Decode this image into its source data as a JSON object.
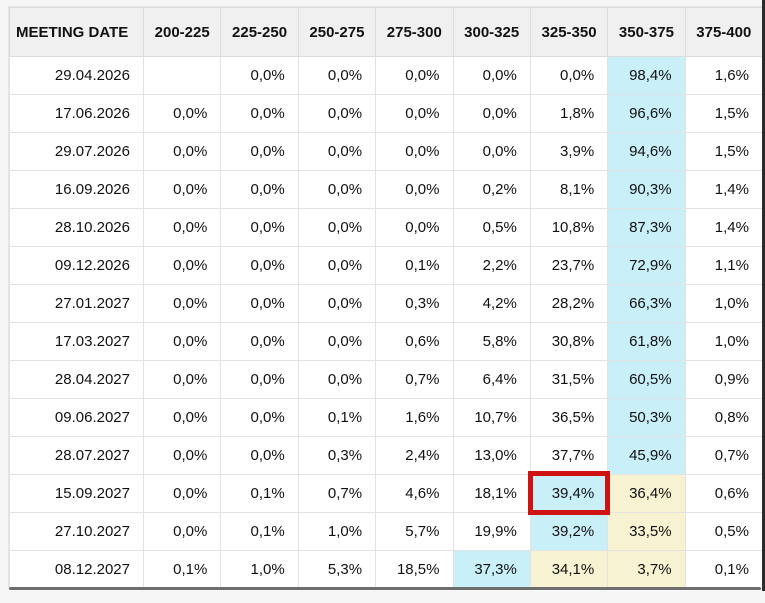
{
  "colors": {
    "highlight_cyan": "#c9eff8",
    "highlight_yellow": "#f6f2d2",
    "red_box_border": "#cf1212",
    "header_bg": "#f0f0f0",
    "grid_line": "#dcdcdc",
    "page_bg": "#f6f6f6"
  },
  "table": {
    "header": {
      "date_label": "MEETING DATE",
      "range_labels": [
        "200-225",
        "225-250",
        "250-275",
        "275-300",
        "300-325",
        "325-350",
        "350-375",
        "375-400"
      ]
    },
    "rows": [
      {
        "date": "29.04.2026",
        "values": [
          "",
          "0,0%",
          "0,0%",
          "0,0%",
          "0,0%",
          "0,0%",
          "98,4%",
          "1,6%"
        ],
        "cyan": 6,
        "yellow": [],
        "red_box": null
      },
      {
        "date": "17.06.2026",
        "values": [
          "0,0%",
          "0,0%",
          "0,0%",
          "0,0%",
          "0,0%",
          "1,8%",
          "96,6%",
          "1,5%"
        ],
        "cyan": 6,
        "yellow": [],
        "red_box": null
      },
      {
        "date": "29.07.2026",
        "values": [
          "0,0%",
          "0,0%",
          "0,0%",
          "0,0%",
          "0,0%",
          "3,9%",
          "94,6%",
          "1,5%"
        ],
        "cyan": 6,
        "yellow": [],
        "red_box": null
      },
      {
        "date": "16.09.2026",
        "values": [
          "0,0%",
          "0,0%",
          "0,0%",
          "0,0%",
          "0,2%",
          "8,1%",
          "90,3%",
          "1,4%"
        ],
        "cyan": 6,
        "yellow": [],
        "red_box": null
      },
      {
        "date": "28.10.2026",
        "values": [
          "0,0%",
          "0,0%",
          "0,0%",
          "0,0%",
          "0,5%",
          "10,8%",
          "87,3%",
          "1,4%"
        ],
        "cyan": 6,
        "yellow": [],
        "red_box": null
      },
      {
        "date": "09.12.2026",
        "values": [
          "0,0%",
          "0,0%",
          "0,0%",
          "0,1%",
          "2,2%",
          "23,7%",
          "72,9%",
          "1,1%"
        ],
        "cyan": 6,
        "yellow": [],
        "red_box": null
      },
      {
        "date": "27.01.2027",
        "values": [
          "0,0%",
          "0,0%",
          "0,0%",
          "0,3%",
          "4,2%",
          "28,2%",
          "66,3%",
          "1,0%"
        ],
        "cyan": 6,
        "yellow": [],
        "red_box": null
      },
      {
        "date": "17.03.2027",
        "values": [
          "0,0%",
          "0,0%",
          "0,0%",
          "0,6%",
          "5,8%",
          "30,8%",
          "61,8%",
          "1,0%"
        ],
        "cyan": 6,
        "yellow": [],
        "red_box": null
      },
      {
        "date": "28.04.2027",
        "values": [
          "0,0%",
          "0,0%",
          "0,0%",
          "0,7%",
          "6,4%",
          "31,5%",
          "60,5%",
          "0,9%"
        ],
        "cyan": 6,
        "yellow": [],
        "red_box": null
      },
      {
        "date": "09.06.2027",
        "values": [
          "0,0%",
          "0,0%",
          "0,1%",
          "1,6%",
          "10,7%",
          "36,5%",
          "50,3%",
          "0,8%"
        ],
        "cyan": 6,
        "yellow": [],
        "red_box": null
      },
      {
        "date": "28.07.2027",
        "values": [
          "0,0%",
          "0,0%",
          "0,3%",
          "2,4%",
          "13,0%",
          "37,7%",
          "45,9%",
          "0,7%"
        ],
        "cyan": 6,
        "yellow": [],
        "red_box": null
      },
      {
        "date": "15.09.2027",
        "values": [
          "0,0%",
          "0,1%",
          "0,7%",
          "4,6%",
          "18,1%",
          "39,4%",
          "36,4%",
          "0,6%"
        ],
        "cyan": 5,
        "yellow": [
          6
        ],
        "red_box": 5
      },
      {
        "date": "27.10.2027",
        "values": [
          "0,0%",
          "0,1%",
          "1,0%",
          "5,7%",
          "19,9%",
          "39,2%",
          "33,5%",
          "0,5%"
        ],
        "cyan": 5,
        "yellow": [
          6
        ],
        "red_box": null
      },
      {
        "date": "08.12.2027",
        "values": [
          "0,1%",
          "1,0%",
          "5,3%",
          "18,5%",
          "37,3%",
          "34,1%",
          "3,7%",
          "0,1%"
        ],
        "cyan": 4,
        "yellow": [
          5,
          6
        ],
        "red_box": null
      }
    ]
  },
  "chart_data": {
    "type": "table",
    "columns": [
      "MEETING DATE",
      "200-225",
      "225-250",
      "250-275",
      "275-300",
      "300-325",
      "325-350",
      "350-375",
      "375-400"
    ],
    "units": "%",
    "decimal_separator_displayed": ",",
    "rows": [
      [
        "29.04.2026",
        null,
        0.0,
        0.0,
        0.0,
        0.0,
        0.0,
        98.4,
        1.6
      ],
      [
        "17.06.2026",
        0.0,
        0.0,
        0.0,
        0.0,
        0.0,
        1.8,
        96.6,
        1.5
      ],
      [
        "29.07.2026",
        0.0,
        0.0,
        0.0,
        0.0,
        0.0,
        3.9,
        94.6,
        1.5
      ],
      [
        "16.09.2026",
        0.0,
        0.0,
        0.0,
        0.0,
        0.2,
        8.1,
        90.3,
        1.4
      ],
      [
        "28.10.2026",
        0.0,
        0.0,
        0.0,
        0.0,
        0.5,
        10.8,
        87.3,
        1.4
      ],
      [
        "09.12.2026",
        0.0,
        0.0,
        0.0,
        0.1,
        2.2,
        23.7,
        72.9,
        1.1
      ],
      [
        "27.01.2027",
        0.0,
        0.0,
        0.0,
        0.3,
        4.2,
        28.2,
        66.3,
        1.0
      ],
      [
        "17.03.2027",
        0.0,
        0.0,
        0.0,
        0.6,
        5.8,
        30.8,
        61.8,
        1.0
      ],
      [
        "28.04.2027",
        0.0,
        0.0,
        0.0,
        0.7,
        6.4,
        31.5,
        60.5,
        0.9
      ],
      [
        "09.06.2027",
        0.0,
        0.0,
        0.1,
        1.6,
        10.7,
        36.5,
        50.3,
        0.8
      ],
      [
        "28.07.2027",
        0.0,
        0.0,
        0.3,
        2.4,
        13.0,
        37.7,
        45.9,
        0.7
      ],
      [
        "15.09.2027",
        0.0,
        0.1,
        0.7,
        4.6,
        18.1,
        39.4,
        36.4,
        0.6
      ],
      [
        "27.10.2027",
        0.0,
        0.1,
        1.0,
        5.7,
        19.9,
        39.2,
        33.5,
        0.5
      ],
      [
        "08.12.2027",
        0.1,
        1.0,
        5.3,
        18.5,
        37.3,
        34.1,
        3.7,
        0.1
      ]
    ],
    "highlights": {
      "cyan_max_probability_cells": [
        [
          "29.04.2026",
          "350-375"
        ],
        [
          "17.06.2026",
          "350-375"
        ],
        [
          "29.07.2026",
          "350-375"
        ],
        [
          "16.09.2026",
          "350-375"
        ],
        [
          "28.10.2026",
          "350-375"
        ],
        [
          "09.12.2026",
          "350-375"
        ],
        [
          "27.01.2027",
          "350-375"
        ],
        [
          "17.03.2027",
          "350-375"
        ],
        [
          "28.04.2027",
          "350-375"
        ],
        [
          "09.06.2027",
          "350-375"
        ],
        [
          "28.07.2027",
          "350-375"
        ],
        [
          "15.09.2027",
          "325-350"
        ],
        [
          "27.10.2027",
          "325-350"
        ],
        [
          "08.12.2027",
          "300-325"
        ]
      ],
      "yellow_cells": [
        [
          "15.09.2027",
          "350-375"
        ],
        [
          "27.10.2027",
          "350-375"
        ],
        [
          "08.12.2027",
          "325-350"
        ],
        [
          "08.12.2027",
          "350-375"
        ]
      ],
      "red_box_cell": [
        "15.09.2027",
        "325-350"
      ]
    }
  }
}
